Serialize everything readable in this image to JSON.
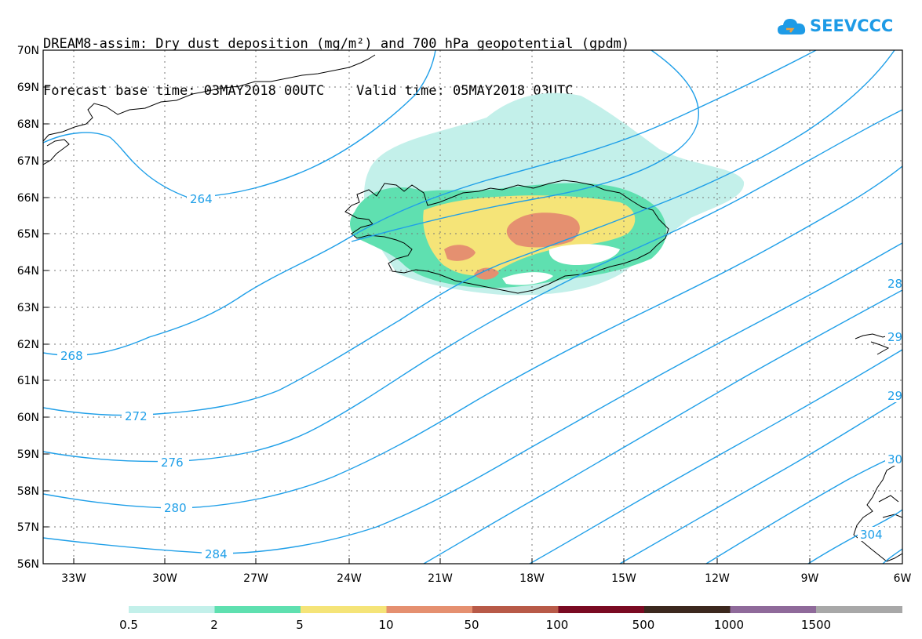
{
  "header": {
    "title_line1": "DREAM8-assim: Dry dust deposition (mg/m²) and 700 hPa geopotential (gpdm)",
    "title_line2": "Forecast base time: 03MAY2018 00UTC    Valid time: 05MAY2018 03UTC"
  },
  "logo": {
    "text": "SEEVCCC",
    "color": "#1e9be6"
  },
  "map": {
    "lat_labels": [
      "70N",
      "69N",
      "68N",
      "67N",
      "66N",
      "65N",
      "64N",
      "63N",
      "62N",
      "61N",
      "60N",
      "59N",
      "58N",
      "57N",
      "56N"
    ],
    "lon_labels": [
      "33W",
      "30W",
      "27W",
      "24W",
      "21W",
      "18W",
      "15W",
      "12W",
      "9W",
      "6W"
    ],
    "contour_color": "#1f9fe8",
    "contour_labels": [
      "264",
      "268",
      "272",
      "276",
      "280",
      "284",
      "28",
      "29",
      "29",
      "30",
      "304"
    ]
  },
  "colorbar": {
    "ticks": [
      "0.5",
      "2",
      "5",
      "10",
      "50",
      "100",
      "500",
      "1000",
      "1500"
    ],
    "colors": [
      "#c3f0ea",
      "#5fe0b0",
      "#f5e478",
      "#e59070",
      "#b85a48",
      "#7a0a22",
      "#3c281e",
      "#8f6a9a",
      "#a8a8a8"
    ]
  }
}
